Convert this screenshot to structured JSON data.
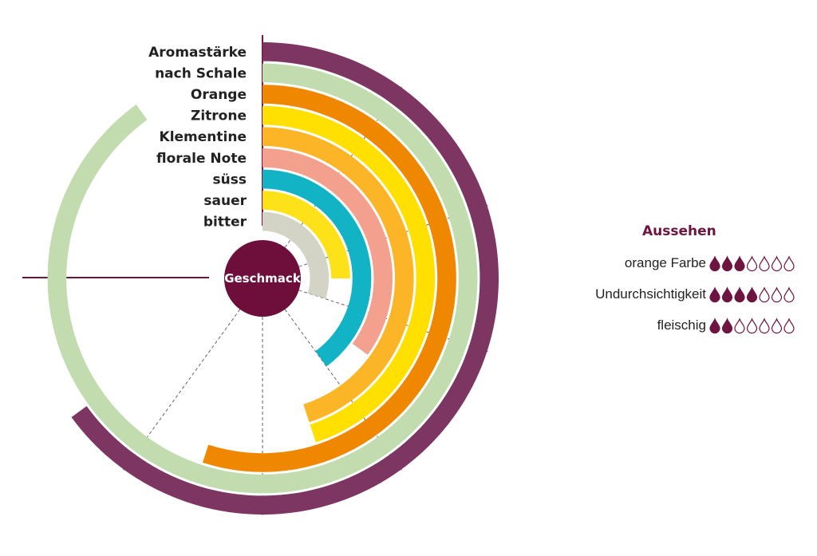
{
  "chart_data": {
    "type": "radial-bar",
    "title": "",
    "center_label": "Geschmack",
    "scale_max": 10,
    "categories": [
      "Aromastärke",
      "nach Schale",
      "Orange",
      "Zitrone",
      "Klementine",
      "florale Note",
      "süss",
      "sauer",
      "bitter"
    ],
    "values": [
      6.5,
      9.0,
      5.5,
      4.5,
      4.5,
      3.5,
      4.0,
      2.5,
      3.0
    ],
    "colors": [
      "#7d3561",
      "#c2dcb0",
      "#f08700",
      "#ffe000",
      "#fbb526",
      "#f4a08e",
      "#13b3c6",
      "#fde21a",
      "#d3d4c6"
    ]
  },
  "appearance": {
    "title": "Aussehen",
    "max": 7,
    "color": "#6d1440",
    "items": [
      {
        "label": "orange Farbe",
        "value": 3
      },
      {
        "label": "Undurchsichtigkeit",
        "value": 4
      },
      {
        "label": "fleischig",
        "value": 2
      }
    ]
  }
}
